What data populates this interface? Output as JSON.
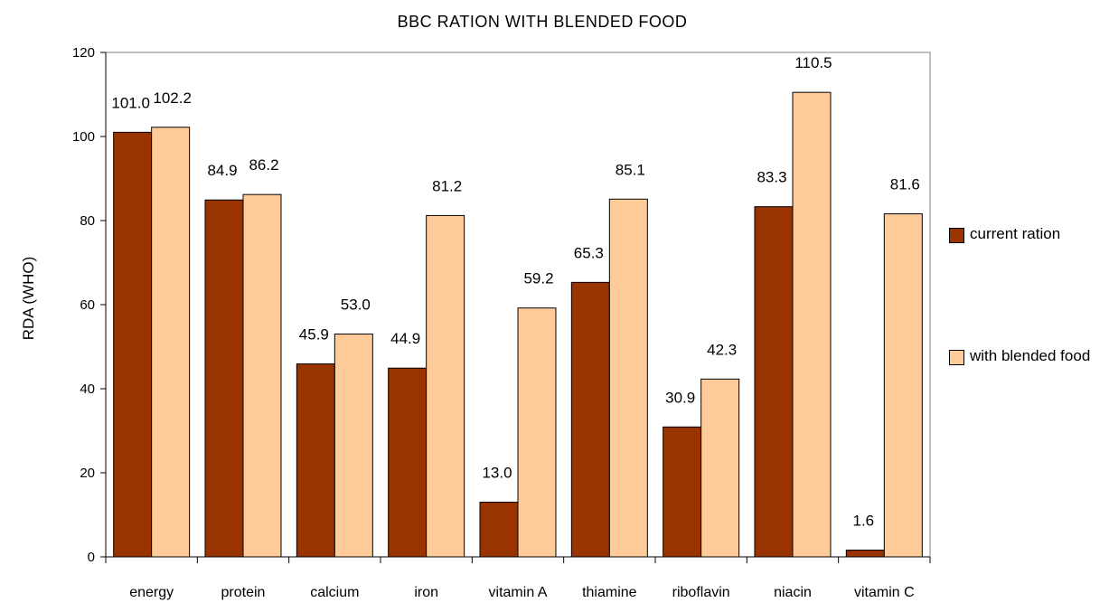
{
  "chart_data": {
    "type": "bar",
    "title": "BBC RATION WITH BLENDED FOOD",
    "xlabel": "",
    "ylabel": "RDA (WHO)",
    "ylim": [
      0,
      120
    ],
    "yticks": [
      0,
      20,
      40,
      60,
      80,
      100,
      120
    ],
    "categories": [
      "energy",
      "protein",
      "calcium",
      "iron",
      "vitamin A",
      "thiamine",
      "riboflavin",
      "niacin",
      "vitamin C"
    ],
    "series": [
      {
        "name": "current ration",
        "color": "#993300",
        "values": [
          101.0,
          84.9,
          45.9,
          44.9,
          13.0,
          65.3,
          30.9,
          83.3,
          1.6
        ],
        "labels": [
          "101.0",
          "84.9",
          "45.9",
          "44.9",
          "13.0",
          "65.3",
          "30.9",
          "83.3",
          "1.6"
        ]
      },
      {
        "name": "with blended food",
        "color": "#FFCC99",
        "values": [
          102.2,
          86.2,
          53.0,
          81.2,
          59.2,
          85.1,
          42.3,
          110.5,
          81.6
        ],
        "labels": [
          "102.2",
          "86.2",
          "53.0",
          "81.2",
          "59.2",
          "85.1",
          "42.3",
          "110.5",
          "81.6"
        ]
      }
    ],
    "grid": false,
    "legend_position": "right"
  }
}
